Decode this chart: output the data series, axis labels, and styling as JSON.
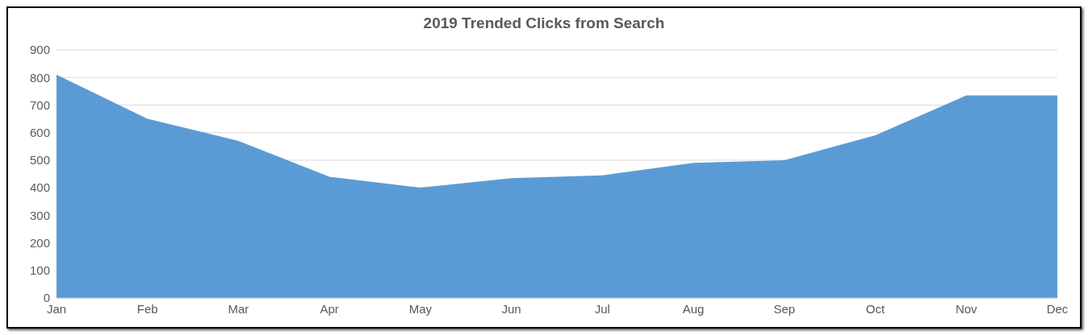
{
  "chart_data": {
    "type": "area",
    "title": "2019 Trended Clicks from Search",
    "categories": [
      "Jan",
      "Feb",
      "Mar",
      "Apr",
      "May",
      "Jun",
      "Jul",
      "Aug",
      "Sep",
      "Oct",
      "Nov",
      "Dec"
    ],
    "series": [
      {
        "color": "#5b9bd5",
        "values": [
          810,
          650,
          570,
          440,
          400,
          435,
          445,
          490,
          500,
          590,
          735,
          735
        ]
      }
    ],
    "ylim": [
      0,
      900
    ],
    "yticks": [
      0,
      100,
      200,
      300,
      400,
      500,
      600,
      700,
      800,
      900
    ],
    "grid": "y",
    "legend": false
  }
}
